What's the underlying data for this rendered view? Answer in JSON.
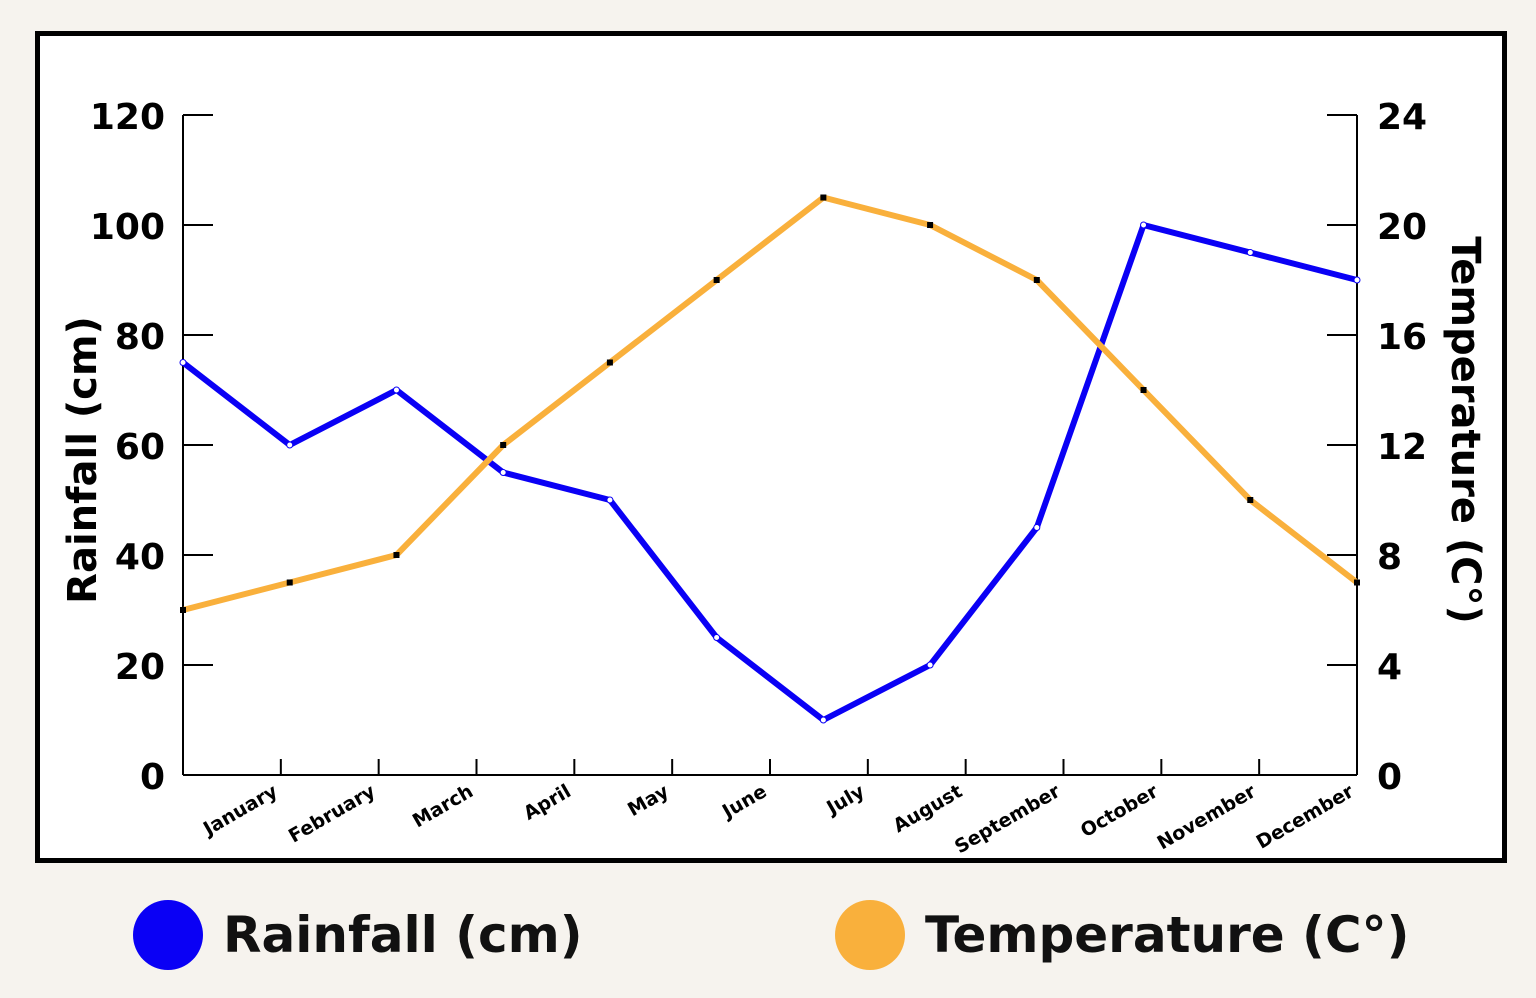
{
  "chart_data": {
    "type": "line",
    "categories": [
      "January",
      "February",
      "March",
      "April",
      "May",
      "June",
      "July",
      "August",
      "September",
      "October",
      "November",
      "December"
    ],
    "series": [
      {
        "name": "Rainfall (cm)",
        "axis": "left",
        "color": "#0a00f5",
        "values": [
          75,
          60,
          70,
          55,
          50,
          25,
          10,
          20,
          45,
          100,
          95,
          90
        ]
      },
      {
        "name": "Temperature (C°)",
        "axis": "right",
        "color": "#f9b03c",
        "values": [
          6,
          7,
          8,
          12,
          15,
          18,
          21,
          20,
          18,
          14,
          10,
          7
        ]
      }
    ],
    "ylabel_left": "Rainfall (cm)",
    "ylabel_right": "Temperature (C°)",
    "ylim_left": [
      0,
      120
    ],
    "ylim_right": [
      0,
      24
    ],
    "yticks_left": [
      0,
      20,
      40,
      60,
      80,
      100,
      120
    ],
    "yticks_right": [
      0,
      4,
      8,
      12,
      16,
      20,
      24
    ],
    "grid": false,
    "legend_placement": "bottom"
  }
}
